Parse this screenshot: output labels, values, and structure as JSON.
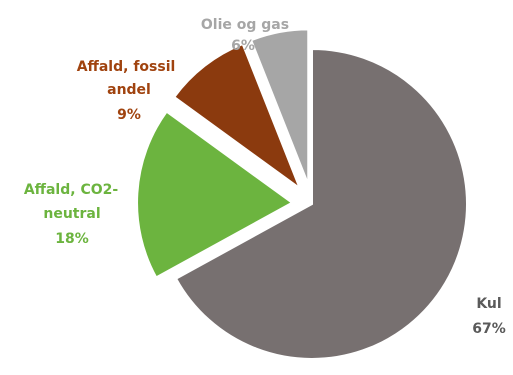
{
  "chart_data": {
    "type": "pie",
    "slices": [
      {
        "name": "Kul",
        "value": 67,
        "label": "67%",
        "color": "#777070",
        "label_color": "#5a5a5a",
        "exploded": false
      },
      {
        "name": "Affald, CO2-neutral",
        "value": 18,
        "label": "18%",
        "color": "#6cb43f",
        "label_color": "#6cb43f",
        "exploded": true
      },
      {
        "name": "Affald, fossil andel",
        "value": 9,
        "label": "9%",
        "color": "#8b3a0e",
        "label_color": "#a0430f",
        "exploded": true
      },
      {
        "name": "Olie og gas",
        "value": 6,
        "label": "6%",
        "color": "#a6a6a6",
        "label_color": "#a6a6a6",
        "exploded": true
      }
    ],
    "labels": {
      "kul_line1": "Kul",
      "kul_pct": "67%",
      "co2_line1": "Affald, CO2-",
      "co2_line2": "neutral",
      "co2_pct": "18%",
      "fossil_line1": "Affald, fossil",
      "fossil_line2": "andel",
      "fossil_pct": "9%",
      "olie_line1": "Olie og gas",
      "olie_pct": "6%"
    }
  }
}
